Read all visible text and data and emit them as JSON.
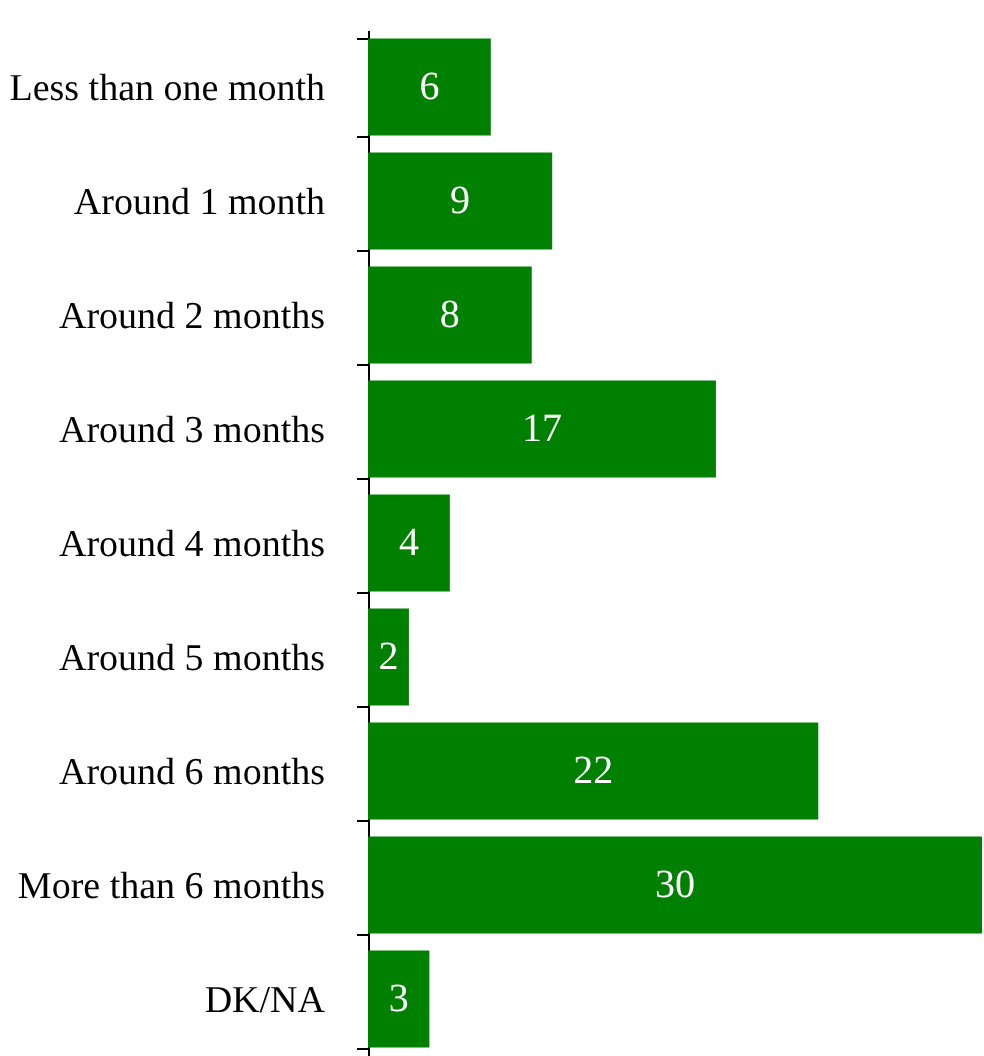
{
  "chart_data": {
    "type": "bar",
    "orientation": "horizontal",
    "categories": [
      "Less than one month",
      "Around 1 month",
      "Around 2 months",
      "Around 3 months",
      "Around 4 months",
      "Around 5 months",
      "Around 6 months",
      "More than 6 months",
      "DK/NA"
    ],
    "values": [
      6,
      9,
      8,
      17,
      4,
      2,
      22,
      30,
      3
    ],
    "color": "#008000",
    "data_labels": true
  }
}
